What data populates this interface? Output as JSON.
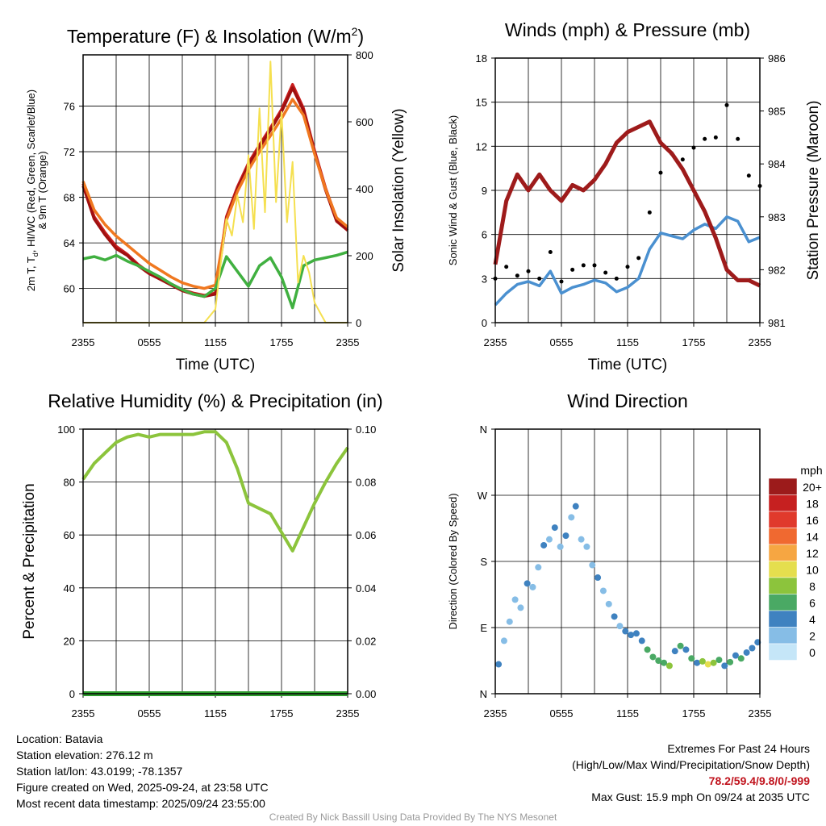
{
  "chart_data": [
    {
      "id": "temp",
      "type": "line",
      "title": "Temperature (F) & Insolation (W/m²)",
      "title_main": "Temperature (F) & Insolation (W/m",
      "title_sup": "2",
      "title_end": ")",
      "xlabel": "Time (UTC)",
      "ylabel_left_line1": "2m T, T",
      "ylabel_left_sub": "d",
      "ylabel_left_line1b": ", HI/WC (Red, Green, Scarlet/Blue)",
      "ylabel_left_line2": "& 9m T (Orange)",
      "ylabel_right": "Solar Insolation (Yellow)",
      "x_ticks": [
        "2355",
        "0555",
        "1155",
        "1755",
        "2355"
      ],
      "x_range": [
        0,
        24
      ],
      "y_left_range": [
        57,
        80.5
      ],
      "y_left_ticks": [
        60,
        64,
        68,
        72,
        76
      ],
      "y_right_range": [
        0,
        800
      ],
      "y_right_ticks": [
        0,
        200,
        400,
        600,
        800
      ],
      "series": [
        {
          "name": "2m T",
          "color": "#c81e1e",
          "axis": "left",
          "x": [
            0,
            1,
            2,
            3,
            4,
            5,
            6,
            7,
            8,
            9,
            10,
            11,
            12,
            13,
            14,
            15,
            16,
            17,
            18,
            19,
            20,
            21,
            22,
            23,
            24
          ],
          "values": [
            69.2,
            66.3,
            64.9,
            63.7,
            63.0,
            62.1,
            61.4,
            60.9,
            60.4,
            59.9,
            59.6,
            59.4,
            59.6,
            66.3,
            68.9,
            71.0,
            72.6,
            74.1,
            75.7,
            77.9,
            75.8,
            72.1,
            68.8,
            66.1,
            65.3
          ]
        },
        {
          "name": "HI/WC",
          "color": "#a01010",
          "axis": "left",
          "x": [
            0,
            1,
            2,
            3,
            4,
            5,
            6,
            7,
            8,
            9,
            10,
            11,
            12,
            13,
            14,
            15,
            16,
            17,
            18,
            19,
            20,
            21,
            22,
            23,
            24
          ],
          "values": [
            69.0,
            66.1,
            64.7,
            63.5,
            62.9,
            62.0,
            61.3,
            60.8,
            60.3,
            59.8,
            59.5,
            59.3,
            59.5,
            66.1,
            68.7,
            70.8,
            72.4,
            73.9,
            75.5,
            77.6,
            75.6,
            71.9,
            68.6,
            65.9,
            65.1
          ]
        },
        {
          "name": "9m T",
          "color": "#f07820",
          "axis": "left",
          "x": [
            0,
            1,
            2,
            3,
            4,
            5,
            6,
            7,
            8,
            9,
            10,
            11,
            12,
            13,
            14,
            15,
            16,
            17,
            18,
            19,
            20,
            21,
            22,
            23,
            24
          ],
          "values": [
            69.4,
            66.9,
            65.6,
            64.6,
            63.8,
            63.0,
            62.2,
            61.6,
            61.0,
            60.5,
            60.2,
            60.0,
            60.3,
            66.0,
            68.5,
            70.4,
            72.0,
            73.4,
            74.9,
            76.6,
            75.2,
            71.8,
            68.7,
            66.2,
            65.4
          ]
        },
        {
          "name": "Td",
          "color": "#40b040",
          "axis": "left",
          "x": [
            0,
            1,
            2,
            3,
            4,
            5,
            6,
            7,
            8,
            9,
            10,
            11,
            12,
            13,
            14,
            15,
            16,
            17,
            18,
            19,
            20,
            21,
            22,
            23,
            24
          ],
          "values": [
            62.6,
            62.8,
            62.5,
            62.9,
            62.4,
            62.0,
            61.5,
            61.0,
            60.4,
            59.9,
            59.5,
            59.3,
            60.0,
            62.8,
            61.5,
            60.2,
            62.0,
            62.7,
            61.0,
            58.3,
            62.0,
            62.5,
            62.7,
            62.9,
            63.2
          ]
        },
        {
          "name": "Solar Insolation",
          "color": "#f5e050",
          "axis": "right",
          "x": [
            0,
            1,
            2,
            3,
            4,
            5,
            6,
            7,
            8,
            9,
            10,
            11,
            12,
            12.5,
            13,
            13.5,
            14,
            14.5,
            15,
            15.5,
            16,
            16.5,
            17,
            17.5,
            18,
            18.5,
            19,
            19.5,
            20,
            20.5,
            21,
            21.5,
            22,
            23,
            24
          ],
          "values": [
            0,
            0,
            0,
            0,
            0,
            0,
            0,
            0,
            0,
            0,
            0,
            0,
            40,
            180,
            310,
            260,
            380,
            300,
            500,
            280,
            640,
            330,
            780,
            360,
            630,
            300,
            480,
            120,
            200,
            150,
            60,
            30,
            0,
            0,
            0
          ]
        }
      ]
    },
    {
      "id": "wind",
      "type": "line",
      "title": "Winds (mph) & Pressure (mb)",
      "xlabel": "Time (UTC)",
      "ylabel_left": "Sonic Wind & Gust (Blue, Black)",
      "ylabel_right": "Station Pressure (Maroon)",
      "x_ticks": [
        "2355",
        "0555",
        "1155",
        "1755",
        "2355"
      ],
      "x_range": [
        0,
        24
      ],
      "y_left_range": [
        0,
        18
      ],
      "y_left_ticks": [
        0,
        3,
        6,
        9,
        12,
        15,
        18
      ],
      "y_right_range": [
        981,
        986
      ],
      "y_right_ticks": [
        981,
        982,
        983,
        984,
        985,
        986
      ],
      "series": [
        {
          "name": "Sonic Wind",
          "color": "#4a90d0",
          "axis": "left",
          "x": [
            0,
            1,
            2,
            3,
            4,
            5,
            6,
            7,
            8,
            9,
            10,
            11,
            12,
            13,
            14,
            15,
            16,
            17,
            18,
            19,
            20,
            21,
            22,
            23,
            24
          ],
          "values": [
            1.2,
            2.0,
            2.6,
            2.8,
            2.5,
            3.5,
            2.0,
            2.4,
            2.6,
            2.9,
            2.7,
            2.1,
            2.4,
            3.0,
            5.0,
            6.1,
            5.9,
            5.7,
            6.3,
            6.7,
            6.4,
            7.2,
            6.9,
            5.5,
            5.8
          ]
        },
        {
          "name": "Gust",
          "color": "#000000",
          "axis": "left",
          "x": [
            0,
            1,
            2,
            3,
            4,
            5,
            6,
            7,
            8,
            9,
            10,
            11,
            12,
            13,
            14,
            15,
            16,
            17,
            18,
            19,
            20,
            21,
            22,
            23,
            24
          ],
          "values": [
            3.0,
            3.8,
            3.2,
            3.5,
            3.0,
            4.8,
            2.8,
            3.6,
            3.9,
            3.9,
            3.4,
            3.0,
            3.8,
            4.4,
            7.5,
            10.2,
            11.5,
            11.1,
            11.9,
            12.5,
            12.6,
            14.8,
            12.5,
            10.0,
            9.3
          ]
        },
        {
          "name": "Station Pressure",
          "color": "#9e1b1b",
          "axis": "right",
          "x": [
            0,
            1,
            2,
            3,
            4,
            5,
            6,
            7,
            8,
            9,
            10,
            11,
            12,
            13,
            14,
            15,
            16,
            17,
            18,
            19,
            20,
            21,
            22,
            23,
            24
          ],
          "values": [
            982.1,
            983.3,
            983.8,
            983.5,
            983.8,
            983.5,
            983.3,
            983.6,
            983.5,
            983.7,
            984.0,
            984.4,
            984.6,
            984.7,
            984.8,
            984.4,
            984.2,
            983.9,
            983.5,
            983.1,
            982.6,
            982.0,
            981.8,
            981.8,
            981.7
          ]
        }
      ]
    },
    {
      "id": "rh",
      "type": "line",
      "title": "Relative Humidity (%) & Precipitation (in)",
      "xlabel": "",
      "ylabel_left": "Percent & Precipitation",
      "x_ticks": [
        "2355",
        "0555",
        "1155",
        "1755",
        "2355"
      ],
      "x_range": [
        0,
        24
      ],
      "y_left_range": [
        0,
        100
      ],
      "y_left_ticks": [
        0,
        20,
        40,
        60,
        80,
        100
      ],
      "y_right_range": [
        0,
        0.1
      ],
      "y_right_ticks": [
        "0.00",
        "0.02",
        "0.04",
        "0.06",
        "0.08",
        "0.10"
      ],
      "series": [
        {
          "name": "Relative Humidity",
          "color": "#8cc43c",
          "axis": "left",
          "x": [
            0,
            1,
            2,
            3,
            4,
            5,
            6,
            7,
            8,
            9,
            10,
            11,
            12,
            13,
            14,
            15,
            16,
            17,
            18,
            19,
            20,
            21,
            22,
            23,
            24
          ],
          "values": [
            81,
            87,
            91,
            95,
            97,
            98,
            97,
            98,
            98,
            98,
            98,
            99,
            99,
            95,
            85,
            72,
            70,
            68,
            61,
            54,
            63,
            72,
            80,
            87,
            93
          ]
        },
        {
          "name": "Precipitation",
          "color": "#2e9b2e",
          "axis": "right",
          "x": [
            0,
            24
          ],
          "values": [
            0,
            0
          ]
        }
      ]
    },
    {
      "id": "dir",
      "type": "scatter",
      "title": "Wind Direction",
      "ylabel_left": "Direction (Colored By Speed)",
      "x_ticks": [
        "2355",
        "0555",
        "1155",
        "1755",
        "2355"
      ],
      "x_range": [
        0,
        24
      ],
      "y_range": [
        0,
        360
      ],
      "y_ticks": [
        "N",
        "E",
        "S",
        "W",
        "N"
      ],
      "legend_title": "mph",
      "legend_labels": [
        "20+",
        "18",
        "16",
        "14",
        "12",
        "10",
        "8",
        "6",
        "4",
        "2",
        "0"
      ],
      "legend_colors": [
        "#9c1b1b",
        "#c62020",
        "#e03a2c",
        "#f06930",
        "#f6a642",
        "#e5de4e",
        "#8cc43c",
        "#4aa964",
        "#3f82c0",
        "#86bde6",
        "#c5e6f8"
      ],
      "points": [
        {
          "x": 0.3,
          "y": 40,
          "s": 3
        },
        {
          "x": 0.8,
          "y": 72,
          "s": 2
        },
        {
          "x": 1.3,
          "y": 98,
          "s": 1
        },
        {
          "x": 1.8,
          "y": 128,
          "s": 2
        },
        {
          "x": 2.3,
          "y": 117,
          "s": 2
        },
        {
          "x": 2.9,
          "y": 150,
          "s": 3
        },
        {
          "x": 3.4,
          "y": 145,
          "s": 2
        },
        {
          "x": 3.9,
          "y": 172,
          "s": 2
        },
        {
          "x": 4.4,
          "y": 202,
          "s": 3
        },
        {
          "x": 4.9,
          "y": 210,
          "s": 2
        },
        {
          "x": 5.4,
          "y": 226,
          "s": 4
        },
        {
          "x": 5.9,
          "y": 200,
          "s": 1
        },
        {
          "x": 6.4,
          "y": 215,
          "s": 3
        },
        {
          "x": 6.9,
          "y": 240,
          "s": 2
        },
        {
          "x": 7.3,
          "y": 255,
          "s": 4
        },
        {
          "x": 7.8,
          "y": 210,
          "s": 2
        },
        {
          "x": 8.3,
          "y": 200,
          "s": 2
        },
        {
          "x": 8.8,
          "y": 175,
          "s": 2
        },
        {
          "x": 9.3,
          "y": 158,
          "s": 3
        },
        {
          "x": 9.8,
          "y": 140,
          "s": 2
        },
        {
          "x": 10.3,
          "y": 122,
          "s": 2
        },
        {
          "x": 10.8,
          "y": 105,
          "s": 3
        },
        {
          "x": 11.3,
          "y": 92,
          "s": 2
        },
        {
          "x": 11.8,
          "y": 85,
          "s": 3
        },
        {
          "x": 12.3,
          "y": 80,
          "s": 4
        },
        {
          "x": 12.8,
          "y": 82,
          "s": 3
        },
        {
          "x": 13.3,
          "y": 72,
          "s": 4
        },
        {
          "x": 13.8,
          "y": 60,
          "s": 5
        },
        {
          "x": 14.3,
          "y": 50,
          "s": 6
        },
        {
          "x": 14.8,
          "y": 45,
          "s": 5
        },
        {
          "x": 15.3,
          "y": 42,
          "s": 6
        },
        {
          "x": 15.8,
          "y": 38,
          "s": 7
        },
        {
          "x": 16.3,
          "y": 58,
          "s": 4
        },
        {
          "x": 16.8,
          "y": 65,
          "s": 6
        },
        {
          "x": 17.3,
          "y": 60,
          "s": 4
        },
        {
          "x": 17.8,
          "y": 48,
          "s": 6
        },
        {
          "x": 18.3,
          "y": 42,
          "s": 4
        },
        {
          "x": 18.8,
          "y": 44,
          "s": 7
        },
        {
          "x": 19.3,
          "y": 40,
          "s": 9
        },
        {
          "x": 19.8,
          "y": 42,
          "s": 7
        },
        {
          "x": 20.3,
          "y": 46,
          "s": 6
        },
        {
          "x": 20.8,
          "y": 38,
          "s": 4
        },
        {
          "x": 21.3,
          "y": 43,
          "s": 6
        },
        {
          "x": 21.8,
          "y": 52,
          "s": 4
        },
        {
          "x": 22.3,
          "y": 48,
          "s": 5
        },
        {
          "x": 22.8,
          "y": 56,
          "s": 3
        },
        {
          "x": 23.3,
          "y": 62,
          "s": 4
        },
        {
          "x": 23.8,
          "y": 70,
          "s": 3
        }
      ]
    }
  ],
  "footer": {
    "location": "Location: Batavia",
    "elevation": "Station elevation: 276.12 m",
    "latlon": "Station lat/lon: 43.0199; -78.1357",
    "created": "Figure created on Wed, 2025-09-24, at 23:58 UTC",
    "recent": "Most recent data timestamp: 2025/09/24 23:55:00",
    "extremes_title": "Extremes For Past 24 Hours",
    "extremes_sub": "(High/Low/Max Wind/Precipitation/Snow Depth)",
    "extremes_values": "78.2/59.4/9.8/0/-999",
    "max_gust": "Max Gust: 15.9 mph On 09/24 at 2035 UTC",
    "credit": "Created By Nick Bassill Using Data Provided By The NYS Mesonet"
  }
}
